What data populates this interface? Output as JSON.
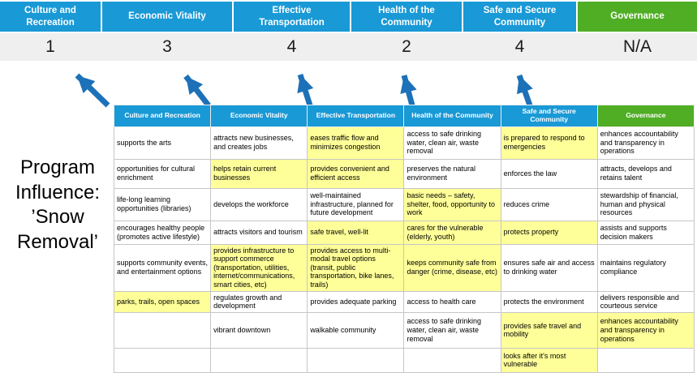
{
  "colors": {
    "header_blue": "#1999d6",
    "header_green": "#4fae24",
    "highlight_yellow": "#ffff99",
    "arrow_blue": "#1d71b8",
    "score_band_bg": "#efefef",
    "table_border": "#c6c6c6"
  },
  "banner": {
    "items": [
      {
        "label": "Culture and Recreation",
        "score": "1",
        "theme": "blue"
      },
      {
        "label": "Economic Vitality",
        "score": "3",
        "theme": "blue"
      },
      {
        "label": "Effective Transportation",
        "score": "4",
        "theme": "blue"
      },
      {
        "label": "Health of the Community",
        "score": "2",
        "theme": "blue"
      },
      {
        "label": "Safe and Secure Community",
        "score": "4",
        "theme": "blue"
      },
      {
        "label": "Governance",
        "score": "N/A",
        "theme": "green"
      }
    ]
  },
  "program_title": "Program Influence: ’Snow Removal’",
  "matrix": {
    "headers": [
      {
        "label": "Culture and Recreation",
        "theme": "blue"
      },
      {
        "label": "Economic Vitality",
        "theme": "blue"
      },
      {
        "label": "Effective Transportation",
        "theme": "blue"
      },
      {
        "label": "Health of the Community",
        "theme": "blue"
      },
      {
        "label": "Safe and Secure Community",
        "theme": "blue"
      },
      {
        "label": "Governance",
        "theme": "green"
      }
    ],
    "rows": [
      [
        {
          "text": "supports the arts",
          "highlight": false
        },
        {
          "text": "attracts new businesses, and creates jobs",
          "highlight": false
        },
        {
          "text": "eases traffic flow and minimizes congestion",
          "highlight": true
        },
        {
          "text": "access to safe drinking water, clean air, waste removal",
          "highlight": false
        },
        {
          "text": "is prepared to respond to emergencies",
          "highlight": true
        },
        {
          "text": "enhances accountability and transparency in operations",
          "highlight": false
        }
      ],
      [
        {
          "text": "opportunities for cultural enrichment",
          "highlight": false
        },
        {
          "text": "helps retain current businesses",
          "highlight": true
        },
        {
          "text": "provides convenient and efficient access",
          "highlight": true
        },
        {
          "text": "preserves the natural environment",
          "highlight": false
        },
        {
          "text": "enforces the law",
          "highlight": false
        },
        {
          "text": "attracts, develops and retains talent",
          "highlight": false
        }
      ],
      [
        {
          "text": "life-long learning opportunities (libraries)",
          "highlight": false
        },
        {
          "text": "develops the workforce",
          "highlight": false
        },
        {
          "text": "well-maintained infrastructure, planned for future development",
          "highlight": false
        },
        {
          "text": "basic needs – safety, shelter, food, opportunity to work",
          "highlight": true
        },
        {
          "text": "reduces crime",
          "highlight": false
        },
        {
          "text": "stewardship of financial, human and physical resources",
          "highlight": false
        }
      ],
      [
        {
          "text": "encourages healthy people (promotes active lifestyle)",
          "highlight": false
        },
        {
          "text": "attracts visitors and tourism",
          "highlight": false
        },
        {
          "text": "safe travel, well-lit",
          "highlight": true
        },
        {
          "text": "cares for the vulnerable (elderly, youth)",
          "highlight": true
        },
        {
          "text": "protects property",
          "highlight": true
        },
        {
          "text": "assists and supports decision makers",
          "highlight": false
        }
      ],
      [
        {
          "text": "supports community events, and entertainment options",
          "highlight": false
        },
        {
          "text": "provides infrastructure to support commerce (transportation, utilities, internet/communications, smart cities, etc)",
          "highlight": true
        },
        {
          "text": "provides access to multi-modal travel options (transit, public transportation, bike lanes, trails)",
          "highlight": true
        },
        {
          "text": "keeps community safe from danger (crime, disease, etc)",
          "highlight": true
        },
        {
          "text": "ensures safe air and access to drinking water",
          "highlight": false
        },
        {
          "text": "maintains regulatory compliance",
          "highlight": false
        }
      ],
      [
        {
          "text": "parks, trails, open spaces",
          "highlight": true
        },
        {
          "text": "regulates growth and development",
          "highlight": false
        },
        {
          "text": "provides adequate parking",
          "highlight": false
        },
        {
          "text": "access to health care",
          "highlight": false
        },
        {
          "text": "protects the environment",
          "highlight": false
        },
        {
          "text": "delivers responsible and courteous service",
          "highlight": false
        }
      ],
      [
        {
          "text": "",
          "highlight": false
        },
        {
          "text": "vibrant downtown",
          "highlight": false
        },
        {
          "text": "walkable community",
          "highlight": false
        },
        {
          "text": "access to safe drinking water, clean air, waste removal",
          "highlight": false
        },
        {
          "text": "provides safe travel and mobility",
          "highlight": true
        },
        {
          "text": "enhances accountability and transparency in operations",
          "highlight": true
        }
      ],
      [
        {
          "text": "",
          "highlight": false
        },
        {
          "text": "",
          "highlight": false
        },
        {
          "text": "",
          "highlight": false
        },
        {
          "text": "",
          "highlight": false
        },
        {
          "text": "looks after it's most vulnerable",
          "highlight": true
        },
        {
          "text": "",
          "highlight": false
        }
      ]
    ]
  }
}
